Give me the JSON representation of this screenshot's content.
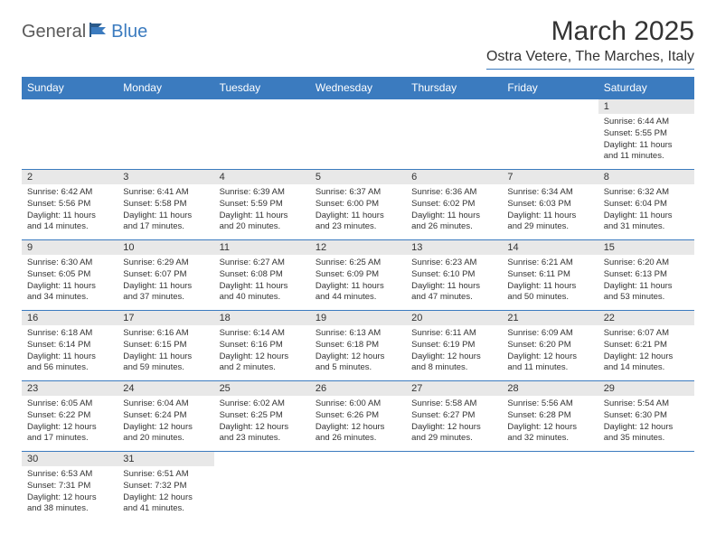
{
  "brand": {
    "part1": "General",
    "part2": "Blue"
  },
  "title": "March 2025",
  "location": "Ostra Vetere, The Marches, Italy",
  "weekdays": [
    "Sunday",
    "Monday",
    "Tuesday",
    "Wednesday",
    "Thursday",
    "Friday",
    "Saturday"
  ],
  "colors": {
    "header_bg": "#3b7bbf",
    "header_text": "#ffffff",
    "daynum_bg": "#e8e8e8",
    "border": "#3b7bbf",
    "logo_gray": "#5a5a5a",
    "logo_blue": "#3b7bbf"
  },
  "weeks": [
    [
      null,
      null,
      null,
      null,
      null,
      null,
      {
        "n": "1",
        "sr": "Sunrise: 6:44 AM",
        "ss": "Sunset: 5:55 PM",
        "dl": "Daylight: 11 hours and 11 minutes."
      }
    ],
    [
      {
        "n": "2",
        "sr": "Sunrise: 6:42 AM",
        "ss": "Sunset: 5:56 PM",
        "dl": "Daylight: 11 hours and 14 minutes."
      },
      {
        "n": "3",
        "sr": "Sunrise: 6:41 AM",
        "ss": "Sunset: 5:58 PM",
        "dl": "Daylight: 11 hours and 17 minutes."
      },
      {
        "n": "4",
        "sr": "Sunrise: 6:39 AM",
        "ss": "Sunset: 5:59 PM",
        "dl": "Daylight: 11 hours and 20 minutes."
      },
      {
        "n": "5",
        "sr": "Sunrise: 6:37 AM",
        "ss": "Sunset: 6:00 PM",
        "dl": "Daylight: 11 hours and 23 minutes."
      },
      {
        "n": "6",
        "sr": "Sunrise: 6:36 AM",
        "ss": "Sunset: 6:02 PM",
        "dl": "Daylight: 11 hours and 26 minutes."
      },
      {
        "n": "7",
        "sr": "Sunrise: 6:34 AM",
        "ss": "Sunset: 6:03 PM",
        "dl": "Daylight: 11 hours and 29 minutes."
      },
      {
        "n": "8",
        "sr": "Sunrise: 6:32 AM",
        "ss": "Sunset: 6:04 PM",
        "dl": "Daylight: 11 hours and 31 minutes."
      }
    ],
    [
      {
        "n": "9",
        "sr": "Sunrise: 6:30 AM",
        "ss": "Sunset: 6:05 PM",
        "dl": "Daylight: 11 hours and 34 minutes."
      },
      {
        "n": "10",
        "sr": "Sunrise: 6:29 AM",
        "ss": "Sunset: 6:07 PM",
        "dl": "Daylight: 11 hours and 37 minutes."
      },
      {
        "n": "11",
        "sr": "Sunrise: 6:27 AM",
        "ss": "Sunset: 6:08 PM",
        "dl": "Daylight: 11 hours and 40 minutes."
      },
      {
        "n": "12",
        "sr": "Sunrise: 6:25 AM",
        "ss": "Sunset: 6:09 PM",
        "dl": "Daylight: 11 hours and 44 minutes."
      },
      {
        "n": "13",
        "sr": "Sunrise: 6:23 AM",
        "ss": "Sunset: 6:10 PM",
        "dl": "Daylight: 11 hours and 47 minutes."
      },
      {
        "n": "14",
        "sr": "Sunrise: 6:21 AM",
        "ss": "Sunset: 6:11 PM",
        "dl": "Daylight: 11 hours and 50 minutes."
      },
      {
        "n": "15",
        "sr": "Sunrise: 6:20 AM",
        "ss": "Sunset: 6:13 PM",
        "dl": "Daylight: 11 hours and 53 minutes."
      }
    ],
    [
      {
        "n": "16",
        "sr": "Sunrise: 6:18 AM",
        "ss": "Sunset: 6:14 PM",
        "dl": "Daylight: 11 hours and 56 minutes."
      },
      {
        "n": "17",
        "sr": "Sunrise: 6:16 AM",
        "ss": "Sunset: 6:15 PM",
        "dl": "Daylight: 11 hours and 59 minutes."
      },
      {
        "n": "18",
        "sr": "Sunrise: 6:14 AM",
        "ss": "Sunset: 6:16 PM",
        "dl": "Daylight: 12 hours and 2 minutes."
      },
      {
        "n": "19",
        "sr": "Sunrise: 6:13 AM",
        "ss": "Sunset: 6:18 PM",
        "dl": "Daylight: 12 hours and 5 minutes."
      },
      {
        "n": "20",
        "sr": "Sunrise: 6:11 AM",
        "ss": "Sunset: 6:19 PM",
        "dl": "Daylight: 12 hours and 8 minutes."
      },
      {
        "n": "21",
        "sr": "Sunrise: 6:09 AM",
        "ss": "Sunset: 6:20 PM",
        "dl": "Daylight: 12 hours and 11 minutes."
      },
      {
        "n": "22",
        "sr": "Sunrise: 6:07 AM",
        "ss": "Sunset: 6:21 PM",
        "dl": "Daylight: 12 hours and 14 minutes."
      }
    ],
    [
      {
        "n": "23",
        "sr": "Sunrise: 6:05 AM",
        "ss": "Sunset: 6:22 PM",
        "dl": "Daylight: 12 hours and 17 minutes."
      },
      {
        "n": "24",
        "sr": "Sunrise: 6:04 AM",
        "ss": "Sunset: 6:24 PM",
        "dl": "Daylight: 12 hours and 20 minutes."
      },
      {
        "n": "25",
        "sr": "Sunrise: 6:02 AM",
        "ss": "Sunset: 6:25 PM",
        "dl": "Daylight: 12 hours and 23 minutes."
      },
      {
        "n": "26",
        "sr": "Sunrise: 6:00 AM",
        "ss": "Sunset: 6:26 PM",
        "dl": "Daylight: 12 hours and 26 minutes."
      },
      {
        "n": "27",
        "sr": "Sunrise: 5:58 AM",
        "ss": "Sunset: 6:27 PM",
        "dl": "Daylight: 12 hours and 29 minutes."
      },
      {
        "n": "28",
        "sr": "Sunrise: 5:56 AM",
        "ss": "Sunset: 6:28 PM",
        "dl": "Daylight: 12 hours and 32 minutes."
      },
      {
        "n": "29",
        "sr": "Sunrise: 5:54 AM",
        "ss": "Sunset: 6:30 PM",
        "dl": "Daylight: 12 hours and 35 minutes."
      }
    ],
    [
      {
        "n": "30",
        "sr": "Sunrise: 6:53 AM",
        "ss": "Sunset: 7:31 PM",
        "dl": "Daylight: 12 hours and 38 minutes."
      },
      {
        "n": "31",
        "sr": "Sunrise: 6:51 AM",
        "ss": "Sunset: 7:32 PM",
        "dl": "Daylight: 12 hours and 41 minutes."
      },
      null,
      null,
      null,
      null,
      null
    ]
  ]
}
